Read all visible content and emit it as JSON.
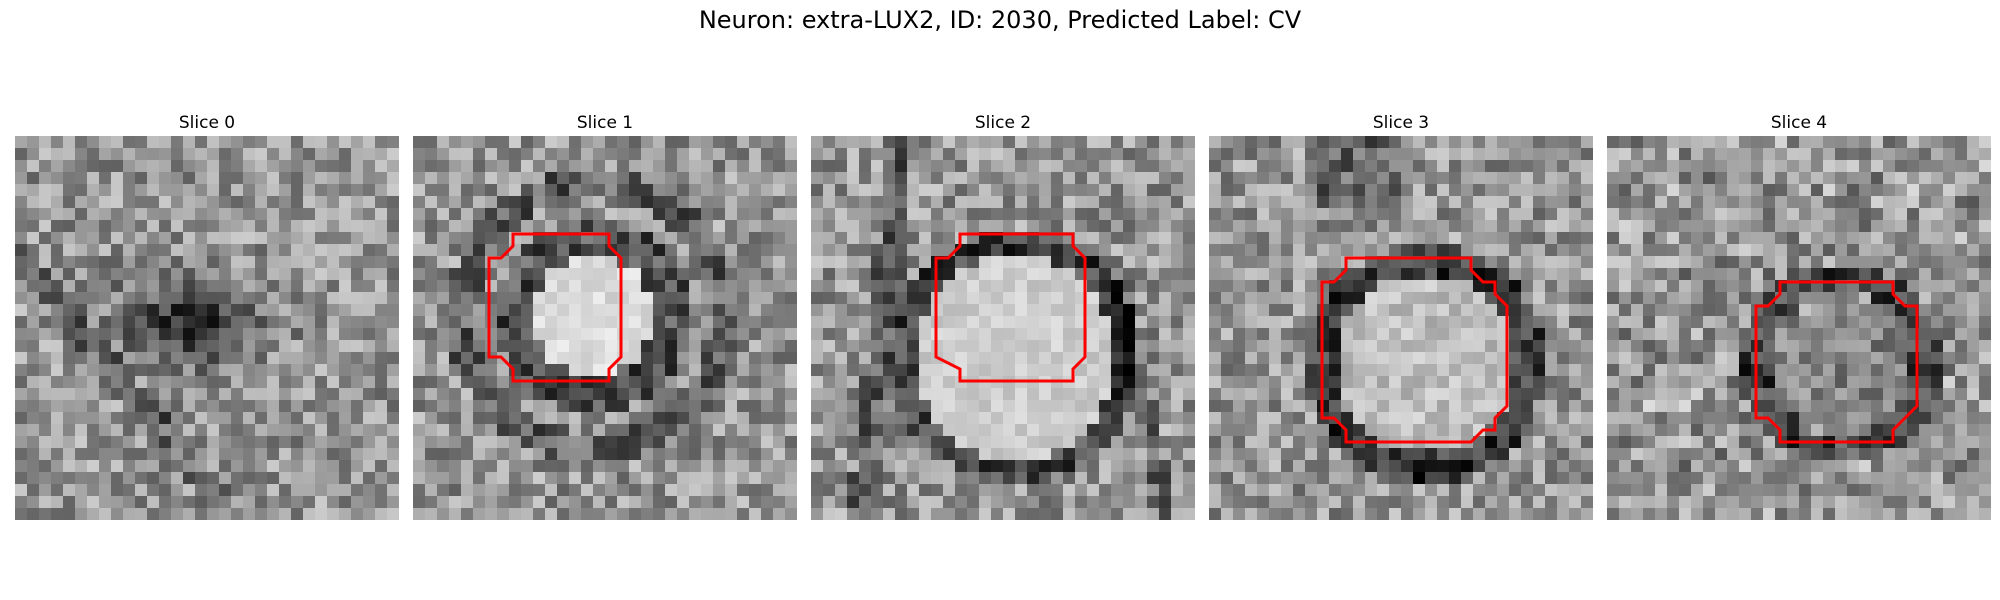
{
  "title": "Neuron: extra-LUX2, ID: 2030, Predicted Label: CV",
  "contour_color": "#ff0000",
  "panels": [
    {
      "title": "Slice 0",
      "pattern": "dark-blob",
      "seed": 11,
      "has_contour": false
    },
    {
      "title": "Slice 1",
      "pattern": "ring-bright",
      "seed": 23,
      "has_contour": true
    },
    {
      "title": "Slice 2",
      "pattern": "large-bright",
      "seed": 37,
      "has_contour": true
    },
    {
      "title": "Slice 3",
      "pattern": "ring-medium",
      "seed": 41,
      "has_contour": true
    },
    {
      "title": "Slice 4",
      "pattern": "noisy-ring",
      "seed": 53,
      "has_contour": true
    }
  ]
}
